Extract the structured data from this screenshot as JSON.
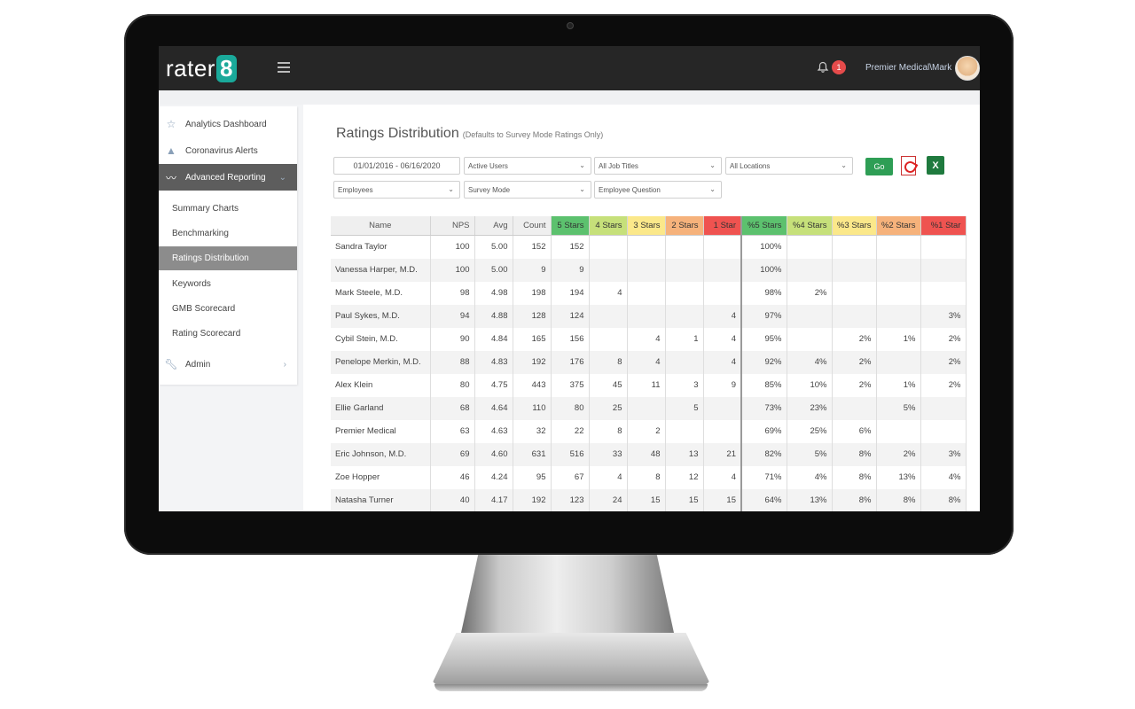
{
  "colors": {
    "topbar": "#262626",
    "brand_teal": "#1aa99a",
    "go_green": "#2e9e55",
    "notification_red": "#e54b4b",
    "stars5": "#5cc16e",
    "stars4": "#c6e07a",
    "stars3": "#fbe88a",
    "stars2": "#f6b27b",
    "stars1": "#ef5350"
  },
  "header": {
    "logo_text": "rater",
    "logo_badge": "8",
    "notification_count": "1",
    "user": "Premier Medical\\Mark",
    "icons": [
      "menu-icon",
      "bell-icon",
      "avatar"
    ]
  },
  "sidebar": {
    "items": [
      {
        "label": "Analytics Dashboard",
        "icon": "star-icon"
      },
      {
        "label": "Coronavirus Alerts",
        "icon": "warning-icon"
      },
      {
        "label": "Advanced Reporting",
        "icon": "trend-icon"
      },
      {
        "label": "Admin",
        "icon": "wrench-icon"
      }
    ],
    "subitems": [
      {
        "label": "Summary Charts"
      },
      {
        "label": "Benchmarking"
      },
      {
        "label": "Ratings Distribution"
      },
      {
        "label": "Keywords"
      },
      {
        "label": "GMB Scorecard"
      },
      {
        "label": "Rating Scorecard"
      }
    ],
    "active_item": "Advanced Reporting",
    "active_subitem": "Ratings Distribution"
  },
  "page": {
    "title": "Ratings Distribution",
    "subtitle": "(Defaults to Survey Mode Ratings Only)"
  },
  "filters": {
    "date_range": "01/01/2016 - 06/16/2020",
    "users": "Active Users",
    "job_titles": "All Job Titles",
    "locations": "All Locations",
    "entity": "Employees",
    "mode": "Survey Mode",
    "question": "Employee Question",
    "go_label": "Go",
    "export_icons": [
      "pdf-icon",
      "excel-icon"
    ],
    "excel_glyph": "X"
  },
  "table": {
    "columns": [
      "Name",
      "NPS",
      "Avg",
      "Count",
      "5 Stars",
      "4 Stars",
      "3 Stars",
      "2 Stars",
      "1 Star",
      "%5 Stars",
      "%4 Stars",
      "%3 Stars",
      "%2 Stars",
      "%1 Star"
    ],
    "rows": [
      [
        "Sandra Taylor",
        "100",
        "5.00",
        "152",
        "152",
        "",
        "",
        "",
        "",
        "100%",
        "",
        "",
        "",
        ""
      ],
      [
        "Vanessa Harper, M.D.",
        "100",
        "5.00",
        "9",
        "9",
        "",
        "",
        "",
        "",
        "100%",
        "",
        "",
        "",
        ""
      ],
      [
        "Mark Steele, M.D.",
        "98",
        "4.98",
        "198",
        "194",
        "4",
        "",
        "",
        "",
        "98%",
        "2%",
        "",
        "",
        ""
      ],
      [
        "Paul Sykes, M.D.",
        "94",
        "4.88",
        "128",
        "124",
        "",
        "",
        "",
        "4",
        "97%",
        "",
        "",
        "",
        "3%"
      ],
      [
        "Cybil Stein, M.D.",
        "90",
        "4.84",
        "165",
        "156",
        "",
        "4",
        "1",
        "4",
        "95%",
        "",
        "2%",
        "1%",
        "2%"
      ],
      [
        "Penelope Merkin, M.D.",
        "88",
        "4.83",
        "192",
        "176",
        "8",
        "4",
        "",
        "4",
        "92%",
        "4%",
        "2%",
        "",
        "2%"
      ],
      [
        "Alex Klein",
        "80",
        "4.75",
        "443",
        "375",
        "45",
        "11",
        "3",
        "9",
        "85%",
        "10%",
        "2%",
        "1%",
        "2%"
      ],
      [
        "Ellie Garland",
        "68",
        "4.64",
        "110",
        "80",
        "25",
        "",
        "5",
        "",
        "73%",
        "23%",
        "",
        "5%",
        ""
      ],
      [
        "Premier Medical",
        "63",
        "4.63",
        "32",
        "22",
        "8",
        "2",
        "",
        "",
        "69%",
        "25%",
        "6%",
        "",
        ""
      ],
      [
        "Eric Johnson, M.D.",
        "69",
        "4.60",
        "631",
        "516",
        "33",
        "48",
        "13",
        "21",
        "82%",
        "5%",
        "8%",
        "2%",
        "3%"
      ],
      [
        "Zoe Hopper",
        "46",
        "4.24",
        "95",
        "67",
        "4",
        "8",
        "12",
        "4",
        "71%",
        "4%",
        "8%",
        "13%",
        "4%"
      ],
      [
        "Natasha Turner",
        "40",
        "4.17",
        "192",
        "123",
        "24",
        "15",
        "15",
        "15",
        "64%",
        "13%",
        "8%",
        "8%",
        "8%"
      ]
    ]
  }
}
